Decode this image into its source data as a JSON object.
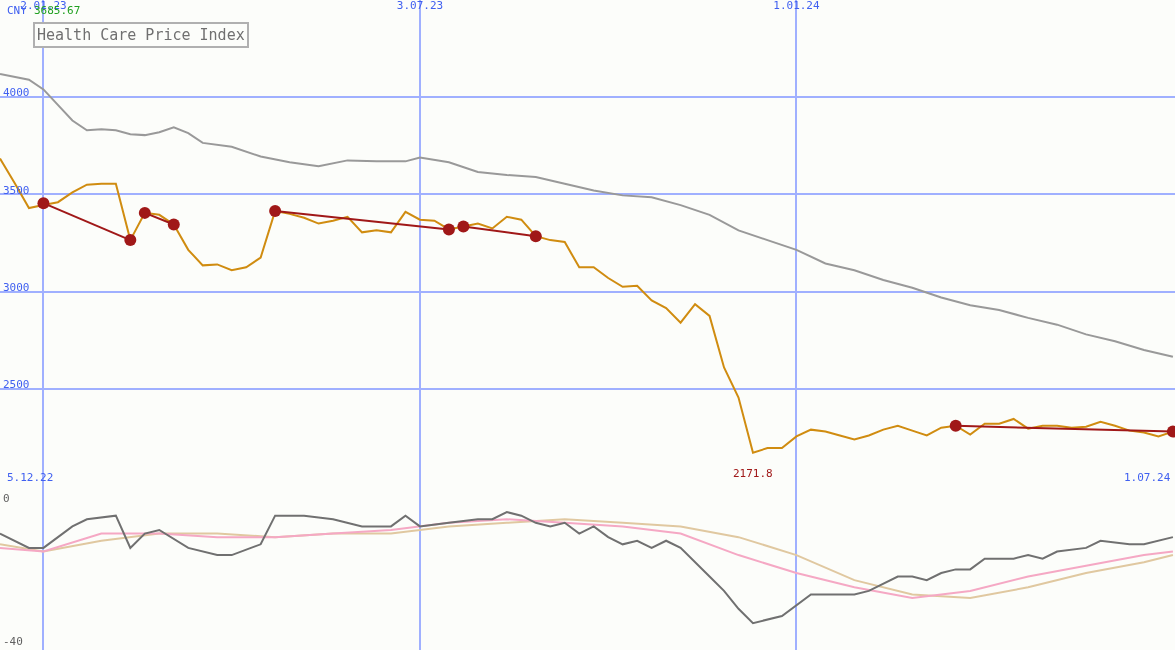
{
  "chart_data": [
    {
      "type": "line",
      "title": "Health Care Price Index",
      "annotations": [
        "CNY",
        "3685.67",
        "5.12.22",
        "1.07.24",
        {
          "text": "2171.8",
          "x": "2023-12-11",
          "y": 2171.8
        }
      ],
      "xlim": [
        "2022-12-12",
        "2024-07-02"
      ],
      "xticks": [
        {
          "value": "2023-01-02",
          "label": "2.01.23"
        },
        {
          "value": "2023-07-03",
          "label": "3.07.23"
        },
        {
          "value": "2024-01-01",
          "label": "1.01.24"
        }
      ],
      "ylim": [
        1995,
        4500
      ],
      "yticks": [
        2500,
        3000,
        3500,
        4000
      ],
      "grid": true,
      "marker": "none",
      "line_style": "solid",
      "series": [
        {
          "color": "#999999",
          "x": [
            "2022-12-12",
            "2022-12-26",
            "2023-01-02",
            "2023-01-16",
            "2023-01-23",
            "2023-01-30",
            "2023-02-06",
            "2023-02-13",
            "2023-02-20",
            "2023-02-27",
            "2023-03-06",
            "2023-03-13",
            "2023-03-20",
            "2023-04-03",
            "2023-04-17",
            "2023-05-01",
            "2023-05-15",
            "2023-05-29",
            "2023-06-12",
            "2023-06-26",
            "2023-07-03",
            "2023-07-17",
            "2023-07-31",
            "2023-08-14",
            "2023-08-28",
            "2023-09-11",
            "2023-09-25",
            "2023-10-09",
            "2023-10-23",
            "2023-11-06",
            "2023-11-20",
            "2023-12-04",
            "2023-12-18",
            "2024-01-01",
            "2024-01-15",
            "2024-01-29",
            "2024-02-12",
            "2024-02-26",
            "2024-03-11",
            "2024-03-25",
            "2024-04-08",
            "2024-04-22",
            "2024-05-06",
            "2024-05-20",
            "2024-06-03",
            "2024-06-17",
            "2024-07-01"
          ],
          "values": [
            4120,
            4090,
            4040,
            3880,
            3830,
            3835,
            3830,
            3810,
            3805,
            3820,
            3845,
            3815,
            3765,
            3745,
            3695,
            3665,
            3645,
            3675,
            3670,
            3670,
            3690,
            3665,
            3615,
            3600,
            3590,
            3555,
            3520,
            3495,
            3485,
            3445,
            3395,
            3315,
            3265,
            3215,
            3145,
            3110,
            3060,
            3020,
            2970,
            2930,
            2905,
            2865,
            2830,
            2780,
            2745,
            2700,
            2665
          ]
        },
        {
          "color": "#d08c10",
          "x": [
            "2022-12-12",
            "2022-12-19",
            "2022-12-26",
            "2023-01-02",
            "2023-01-09",
            "2023-01-16",
            "2023-01-23",
            "2023-01-30",
            "2023-02-06",
            "2023-02-13",
            "2023-02-20",
            "2023-02-27",
            "2023-03-06",
            "2023-03-13",
            "2023-03-20",
            "2023-03-27",
            "2023-04-03",
            "2023-04-10",
            "2023-04-17",
            "2023-04-24",
            "2023-05-01",
            "2023-05-08",
            "2023-05-15",
            "2023-05-22",
            "2023-05-29",
            "2023-06-05",
            "2023-06-12",
            "2023-06-19",
            "2023-06-26",
            "2023-07-03",
            "2023-07-10",
            "2023-07-17",
            "2023-07-24",
            "2023-07-31",
            "2023-08-07",
            "2023-08-14",
            "2023-08-21",
            "2023-08-28",
            "2023-09-04",
            "2023-09-11",
            "2023-09-18",
            "2023-09-25",
            "2023-10-02",
            "2023-10-09",
            "2023-10-16",
            "2023-10-23",
            "2023-10-30",
            "2023-11-06",
            "2023-11-13",
            "2023-11-20",
            "2023-11-27",
            "2023-12-04",
            "2023-12-11",
            "2023-12-18",
            "2023-12-25",
            "2024-01-01",
            "2024-01-08",
            "2024-01-15",
            "2024-01-22",
            "2024-01-29",
            "2024-02-05",
            "2024-02-12",
            "2024-02-19",
            "2024-02-26",
            "2024-03-04",
            "2024-03-11",
            "2024-03-18",
            "2024-03-25",
            "2024-04-01",
            "2024-04-08",
            "2024-04-15",
            "2024-04-22",
            "2024-04-29",
            "2024-05-06",
            "2024-05-13",
            "2024-05-20",
            "2024-05-27",
            "2024-06-03",
            "2024-06-10",
            "2024-06-17",
            "2024-06-24",
            "2024-07-01"
          ],
          "values": [
            3685,
            3560,
            3430,
            3445,
            3460,
            3510,
            3550,
            3555,
            3555,
            3265,
            3405,
            3395,
            3345,
            3215,
            3135,
            3140,
            3110,
            3125,
            3175,
            3415,
            3400,
            3380,
            3350,
            3365,
            3385,
            3305,
            3315,
            3305,
            3410,
            3370,
            3365,
            3320,
            3335,
            3350,
            3325,
            3385,
            3370,
            3285,
            3265,
            3255,
            3125,
            3125,
            3070,
            3025,
            3030,
            2955,
            2915,
            2840,
            2935,
            2875,
            2610,
            2455,
            2171.8,
            2195,
            2195,
            2255,
            2290,
            2280,
            2260,
            2240,
            2260,
            2290,
            2310,
            2285,
            2260,
            2300,
            2310,
            2265,
            2320,
            2320,
            2345,
            2295,
            2310,
            2310,
            2300,
            2305,
            2330,
            2310,
            2285,
            2275,
            2255,
            2280
          ]
        },
        {
          "color": "#a01818",
          "marker": "circle",
          "x": [
            "2023-01-02",
            "2023-02-13"
          ],
          "values": [
            3455,
            3265
          ]
        },
        {
          "color": "#a01818",
          "marker": "circle",
          "x": [
            "2023-02-20",
            "2023-03-06"
          ],
          "values": [
            3405,
            3345
          ]
        },
        {
          "color": "#a01818",
          "marker": "circle",
          "x": [
            "2023-04-24",
            "2023-07-17"
          ],
          "values": [
            3415,
            3320
          ]
        },
        {
          "color": "#a01818",
          "marker": "circle",
          "x": [
            "2023-07-24",
            "2023-08-28"
          ],
          "values": [
            3335,
            3285
          ]
        },
        {
          "color": "#a01818",
          "marker": "circle",
          "x": [
            "2024-03-18",
            "2024-07-01"
          ],
          "values": [
            2310,
            2280
          ]
        }
      ]
    },
    {
      "type": "line",
      "xlim": [
        "2022-12-12",
        "2024-07-02"
      ],
      "xticks": [
        {
          "value": "2023-01-02",
          "label": null
        },
        {
          "value": "2023-07-03",
          "label": null
        },
        {
          "value": "2024-01-01",
          "label": null
        }
      ],
      "ylim": [
        -42.5,
        3
      ],
      "yticks": [
        0,
        -40
      ],
      "grid": "x",
      "tick_labels": "y",
      "marker": "none",
      "line_style": "solid",
      "series": [
        {
          "color": "#e0c8a0",
          "x": [
            "2022-12-12",
            "2023-01-02",
            "2023-01-30",
            "2023-02-27",
            "2023-03-27",
            "2023-04-24",
            "2023-05-22",
            "2023-06-19",
            "2023-07-17",
            "2023-08-14",
            "2023-09-11",
            "2023-10-09",
            "2023-11-06",
            "2023-12-04",
            "2024-01-01",
            "2024-01-29",
            "2024-02-26",
            "2024-03-25",
            "2024-04-22",
            "2024-05-20",
            "2024-06-17",
            "2024-07-01"
          ],
          "values": [
            -13,
            -15,
            -12,
            -10,
            -10,
            -11,
            -10,
            -10,
            -8,
            -7,
            -6,
            -7,
            -8,
            -11,
            -16,
            -23,
            -27,
            -28,
            -25,
            -21,
            -18,
            -16
          ]
        },
        {
          "color": "#f5a8c4",
          "x": [
            "2022-12-12",
            "2023-01-02",
            "2023-01-30",
            "2023-02-27",
            "2023-03-27",
            "2023-04-24",
            "2023-05-22",
            "2023-06-19",
            "2023-07-17",
            "2023-08-14",
            "2023-09-11",
            "2023-10-09",
            "2023-11-06",
            "2023-12-04",
            "2024-01-01",
            "2024-01-29",
            "2024-02-26",
            "2024-03-25",
            "2024-04-22",
            "2024-05-20",
            "2024-06-17",
            "2024-07-01"
          ],
          "values": [
            -14,
            -15,
            -10,
            -10,
            -11,
            -11,
            -10,
            -9,
            -7,
            -6,
            -7,
            -8,
            -10,
            -16,
            -21,
            -25,
            -28,
            -26,
            -22,
            -19,
            -16,
            -15
          ]
        },
        {
          "color": "#707070",
          "x": [
            "2022-12-12",
            "2022-12-26",
            "2023-01-02",
            "2023-01-16",
            "2023-01-23",
            "2023-02-06",
            "2023-02-13",
            "2023-02-20",
            "2023-02-27",
            "2023-03-13",
            "2023-03-27",
            "2023-04-03",
            "2023-04-17",
            "2023-04-24",
            "2023-05-08",
            "2023-05-22",
            "2023-06-05",
            "2023-06-19",
            "2023-06-26",
            "2023-07-03",
            "2023-07-17",
            "2023-07-31",
            "2023-08-07",
            "2023-08-14",
            "2023-08-21",
            "2023-08-28",
            "2023-09-04",
            "2023-09-11",
            "2023-09-18",
            "2023-09-25",
            "2023-10-02",
            "2023-10-09",
            "2023-10-16",
            "2023-10-23",
            "2023-10-30",
            "2023-11-06",
            "2023-11-20",
            "2023-11-27",
            "2023-12-04",
            "2023-12-11",
            "2023-12-25",
            "2024-01-08",
            "2024-01-15",
            "2024-01-29",
            "2024-02-05",
            "2024-02-19",
            "2024-02-26",
            "2024-03-04",
            "2024-03-11",
            "2024-03-18",
            "2024-03-25",
            "2024-04-01",
            "2024-04-08",
            "2024-04-15",
            "2024-04-22",
            "2024-04-29",
            "2024-05-06",
            "2024-05-20",
            "2024-05-27",
            "2024-06-10",
            "2024-06-17",
            "2024-07-01"
          ],
          "values": [
            -10,
            -14,
            -14,
            -8,
            -6,
            -5,
            -14,
            -10,
            -9,
            -14,
            -16,
            -16,
            -13,
            -5,
            -5,
            -6,
            -8,
            -8,
            -5,
            -8,
            -7,
            -6,
            -6,
            -4,
            -5,
            -7,
            -8,
            -7,
            -10,
            -8,
            -11,
            -13,
            -12,
            -14,
            -12,
            -14,
            -22,
            -26,
            -31,
            -35,
            -33,
            -27,
            -27,
            -27,
            -26,
            -22,
            -22,
            -23,
            -21,
            -20,
            -20,
            -17,
            -17,
            -17,
            -16,
            -17,
            -15,
            -14,
            -12,
            -13,
            -13,
            -11
          ]
        }
      ]
    }
  ]
}
